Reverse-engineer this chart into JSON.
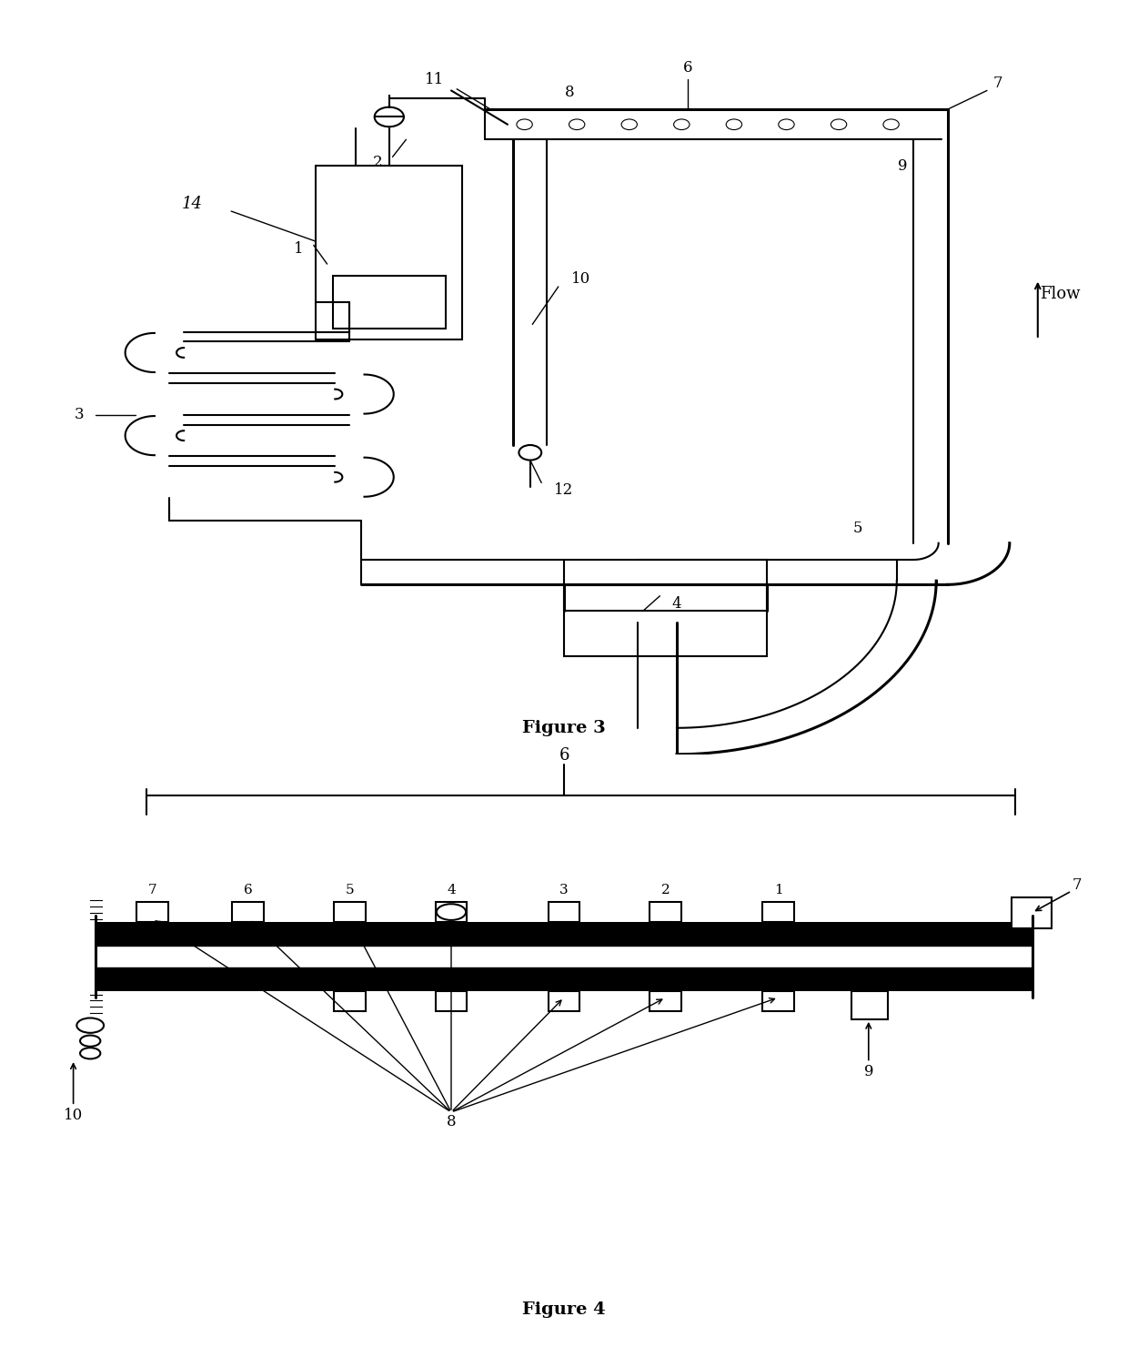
{
  "fig_width": 12.4,
  "fig_height": 14.8,
  "bg_color": "#ffffff",
  "line_color": "#000000",
  "figure3_title": "Figure 3",
  "figure4_title": "Figure 4",
  "flow_label": "Flow"
}
